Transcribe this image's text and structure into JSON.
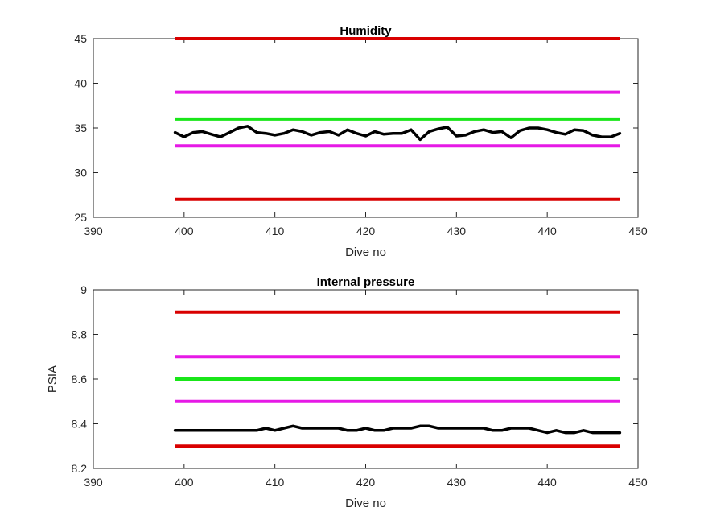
{
  "chart_data": [
    {
      "type": "line",
      "title": "Humidity",
      "xlabel": "Dive no",
      "ylabel": "",
      "xlim": [
        390,
        450
      ],
      "ylim": [
        25,
        45
      ],
      "xticks": [
        390,
        400,
        410,
        420,
        430,
        440,
        450
      ],
      "yticks": [
        25,
        30,
        35,
        40,
        45
      ],
      "grid": false,
      "thresholds": [
        {
          "y": 45,
          "color": "#d90000"
        },
        {
          "y": 39,
          "color": "#e619e6"
        },
        {
          "y": 36,
          "color": "#19e619"
        },
        {
          "y": 33,
          "color": "#e619e6"
        },
        {
          "y": 27,
          "color": "#d90000"
        }
      ],
      "threshold_x": [
        399,
        448
      ],
      "series": [
        {
          "color": "#000000",
          "x": [
            399,
            400,
            401,
            402,
            403,
            404,
            405,
            406,
            407,
            408,
            409,
            410,
            411,
            412,
            413,
            414,
            415,
            416,
            417,
            418,
            419,
            420,
            421,
            422,
            423,
            424,
            425,
            426,
            427,
            428,
            429,
            430,
            431,
            432,
            433,
            434,
            435,
            436,
            437,
            438,
            439,
            440,
            441,
            442,
            443,
            444,
            445,
            446,
            447,
            448
          ],
          "y": [
            34.5,
            34.0,
            34.5,
            34.6,
            34.3,
            34.0,
            34.5,
            35.0,
            35.2,
            34.5,
            34.4,
            34.2,
            34.4,
            34.8,
            34.6,
            34.2,
            34.5,
            34.6,
            34.2,
            34.8,
            34.4,
            34.1,
            34.6,
            34.3,
            34.4,
            34.4,
            34.8,
            33.7,
            34.6,
            34.9,
            35.1,
            34.1,
            34.2,
            34.6,
            34.8,
            34.5,
            34.6,
            33.9,
            34.7,
            35.0,
            35.0,
            34.8,
            34.5,
            34.3,
            34.8,
            34.7,
            34.2,
            34.0,
            34.0,
            34.4
          ]
        }
      ]
    },
    {
      "type": "line",
      "title": "Internal pressure",
      "xlabel": "Dive no",
      "ylabel": "PSIA",
      "xlim": [
        390,
        450
      ],
      "ylim": [
        8.2,
        9.0
      ],
      "xticks": [
        390,
        400,
        410,
        420,
        430,
        440,
        450
      ],
      "yticks": [
        8.2,
        8.4,
        8.6,
        8.8,
        9.0
      ],
      "ytick_labels": [
        "8.2",
        "8.4",
        "8.6",
        "8.8",
        "9"
      ],
      "grid": false,
      "thresholds": [
        {
          "y": 8.9,
          "color": "#d90000"
        },
        {
          "y": 8.7,
          "color": "#e619e6"
        },
        {
          "y": 8.6,
          "color": "#19e619"
        },
        {
          "y": 8.5,
          "color": "#e619e6"
        },
        {
          "y": 8.3,
          "color": "#d90000"
        }
      ],
      "threshold_x": [
        399,
        448
      ],
      "series": [
        {
          "color": "#000000",
          "x": [
            399,
            400,
            401,
            402,
            403,
            404,
            405,
            406,
            407,
            408,
            409,
            410,
            411,
            412,
            413,
            414,
            415,
            416,
            417,
            418,
            419,
            420,
            421,
            422,
            423,
            424,
            425,
            426,
            427,
            428,
            429,
            430,
            431,
            432,
            433,
            434,
            435,
            436,
            437,
            438,
            439,
            440,
            441,
            442,
            443,
            444,
            445,
            446,
            447,
            448
          ],
          "y": [
            8.37,
            8.37,
            8.37,
            8.37,
            8.37,
            8.37,
            8.37,
            8.37,
            8.37,
            8.37,
            8.38,
            8.37,
            8.38,
            8.39,
            8.38,
            8.38,
            8.38,
            8.38,
            8.38,
            8.37,
            8.37,
            8.38,
            8.37,
            8.37,
            8.38,
            8.38,
            8.38,
            8.39,
            8.39,
            8.38,
            8.38,
            8.38,
            8.38,
            8.38,
            8.38,
            8.37,
            8.37,
            8.38,
            8.38,
            8.38,
            8.37,
            8.36,
            8.37,
            8.36,
            8.36,
            8.37,
            8.36,
            8.36,
            8.36,
            8.36
          ]
        }
      ]
    }
  ]
}
